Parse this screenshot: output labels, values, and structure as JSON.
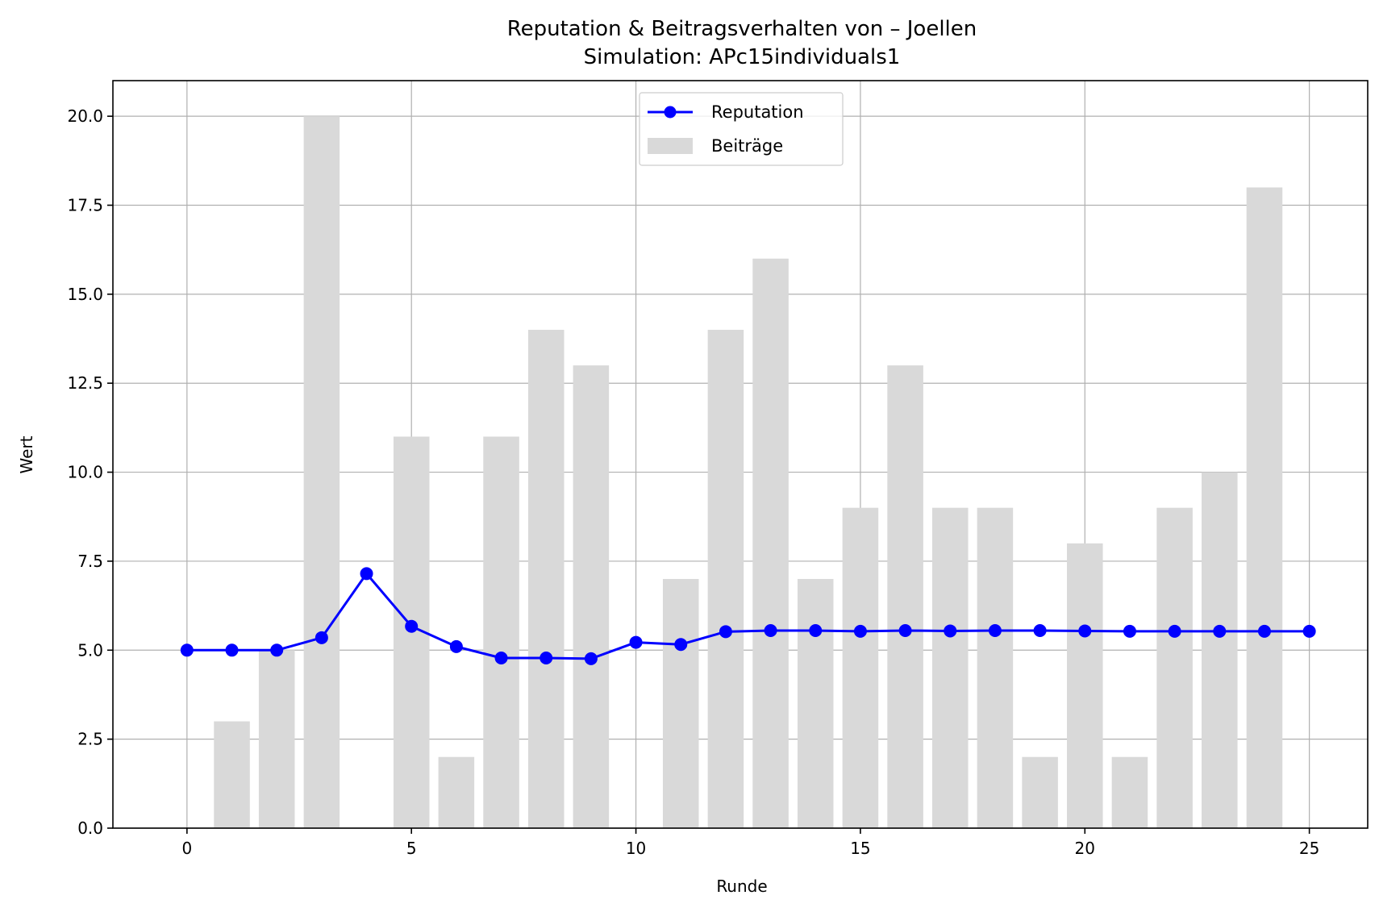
{
  "chart_data": {
    "type": "bar",
    "title": "Reputation & Beitragsverhalten von – Joellen",
    "subtitle": "Simulation: APc15individuals1",
    "xlabel": "Runde",
    "ylabel": "Wert",
    "xlim": [
      -1.65,
      26.3
    ],
    "ylim": [
      0,
      21
    ],
    "x_ticks": [
      0,
      5,
      10,
      15,
      20,
      25
    ],
    "x_tick_labels": [
      "0",
      "5",
      "10",
      "15",
      "20",
      "25"
    ],
    "y_ticks": [
      0,
      2.5,
      5,
      7.5,
      10,
      12.5,
      15,
      17.5,
      20
    ],
    "y_tick_labels": [
      "0.0",
      "2.5",
      "5.0",
      "7.5",
      "10.0",
      "12.5",
      "15.0",
      "17.5",
      "20.0"
    ],
    "grid": true,
    "legend_position": "top-center",
    "series": [
      {
        "name": "Reputation",
        "kind": "line",
        "marker": "circle",
        "color": "#0000ff",
        "x": [
          0,
          1,
          2,
          3,
          4,
          5,
          6,
          7,
          8,
          9,
          10,
          11,
          12,
          13,
          14,
          15,
          16,
          17,
          18,
          19,
          20,
          21,
          22,
          23,
          24,
          25
        ],
        "values": [
          5.0,
          5.0,
          5.0,
          5.35,
          7.15,
          5.67,
          5.1,
          4.78,
          4.78,
          4.76,
          5.22,
          5.16,
          5.52,
          5.55,
          5.55,
          5.53,
          5.55,
          5.54,
          5.55,
          5.55,
          5.54,
          5.53,
          5.53,
          5.53,
          5.53,
          5.53
        ]
      },
      {
        "name": "Beiträge",
        "kind": "bar",
        "color": "#d9d9d9",
        "x": [
          1,
          2,
          3,
          5,
          6,
          7,
          8,
          9,
          11,
          12,
          13,
          14,
          15,
          16,
          17,
          18,
          19,
          20,
          21,
          22,
          23,
          24
        ],
        "values": [
          3,
          5,
          20,
          11,
          2,
          11,
          14,
          13,
          7,
          14,
          16,
          7,
          9,
          13,
          9,
          9,
          2,
          8,
          2,
          9,
          10,
          18
        ]
      }
    ]
  }
}
